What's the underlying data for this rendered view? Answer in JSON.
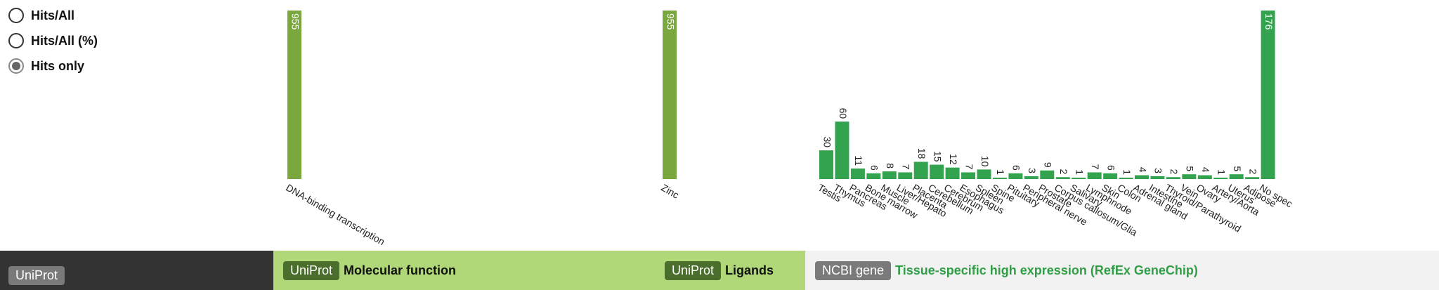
{
  "radio": {
    "options": [
      {
        "label": "Hits/All",
        "selected": false
      },
      {
        "label": "Hits/All (%)",
        "selected": false
      },
      {
        "label": "Hits only",
        "selected": true
      }
    ]
  },
  "bottom": {
    "left_tag": "UniProt",
    "molfunc_tag": "UniProt",
    "molfunc_title": "Molecular function",
    "ligands_tag": "UniProt",
    "ligands_title": "Ligands",
    "ncbi_tag": "NCBI gene",
    "ncbi_title": "Tissue-specific high expression (RefEx GeneChip)"
  },
  "colors": {
    "olive_bar": "#7aa83e",
    "green_bar": "#34a34f",
    "bar_bg_dark": "#333333",
    "panel_light": "#b0d879"
  },
  "chart_data": [
    {
      "type": "bar",
      "categories": [
        "DNA-binding transcription"
      ],
      "values": [
        955
      ],
      "ylim": [
        0,
        955
      ]
    },
    {
      "type": "bar",
      "categories": [
        "Zinc"
      ],
      "values": [
        955
      ],
      "ylim": [
        0,
        955
      ]
    },
    {
      "type": "bar",
      "categories": [
        "Testis",
        "Thymus",
        "Pancreas",
        "Bone marrow",
        "Muscle",
        "Liver/Hepato",
        "Placenta",
        "Cerebellum",
        "Cerebrum",
        "Esophagus",
        "Spleen",
        "Spine",
        "Pituitary",
        "Peripheral nerve",
        "Prostate",
        "Corpus callosum/Glia",
        "Salivary",
        "Lymphnode",
        "Skin",
        "Colon",
        "Adrenal gland",
        "Intestine",
        "Thyroid/Parathyroid",
        "Vein",
        "Ovary",
        "Artery/Aorta",
        "Uterus",
        "Adipose",
        "No spec"
      ],
      "values": [
        30,
        60,
        11,
        6,
        8,
        7,
        18,
        15,
        12,
        7,
        10,
        1,
        6,
        3,
        9,
        2,
        1,
        7,
        6,
        1,
        4,
        3,
        2,
        5,
        4,
        1,
        5,
        2,
        176
      ],
      "ylim": [
        0,
        176
      ]
    }
  ]
}
